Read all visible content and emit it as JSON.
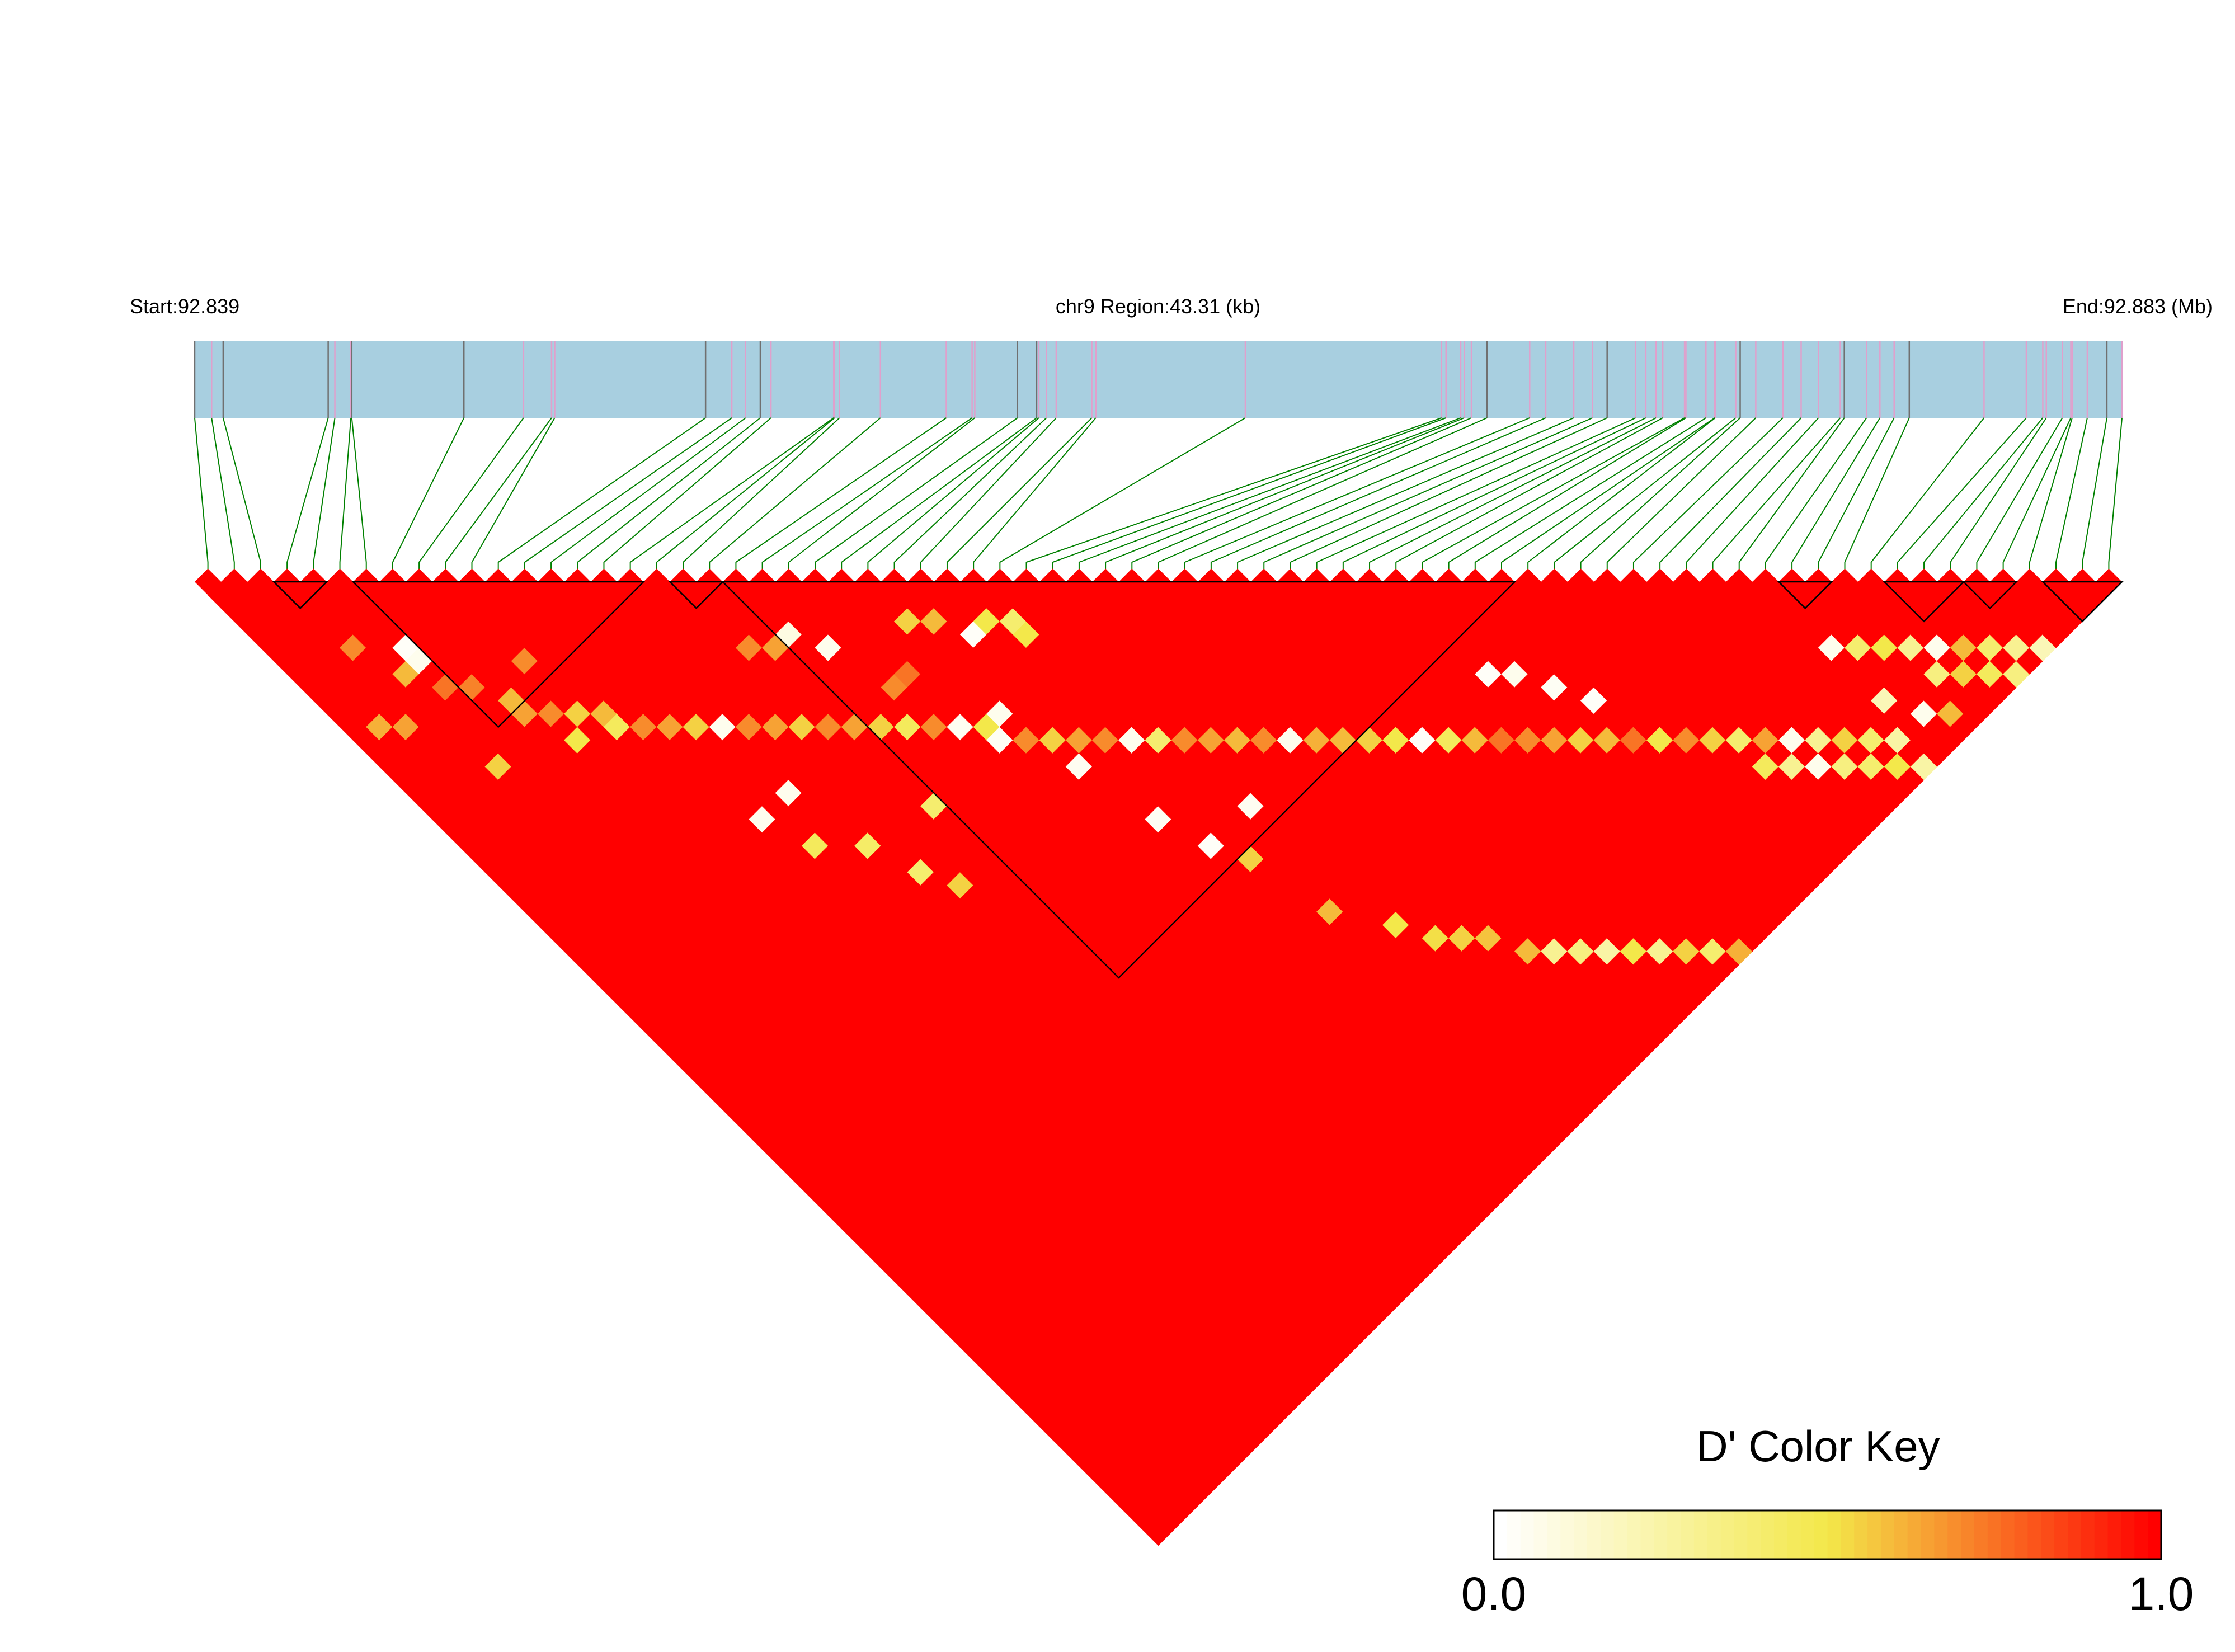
{
  "header": {
    "start_label": "Start:92.839",
    "region_label": "chr9 Region:43.31 (kb)",
    "end_label": "End:92.883 (Mb)"
  },
  "colors": {
    "chromosome_bar": "#a8cfe0",
    "snp_tick_default": "#e0a0cc",
    "snp_tick_dark": "#707070",
    "connector": "#008000",
    "block_outline": "#000000",
    "d_high": "#ff0000",
    "d_low": "#ffffff"
  },
  "legend": {
    "title": "D' Color Key",
    "min_label": "0.0",
    "max_label": "1.0",
    "steps": 50,
    "stops": [
      "#ffffff",
      "#f3e84a",
      "#ff0000"
    ]
  },
  "chart_data": {
    "type": "heatmap",
    "subtype": "LD triangle (pairwise D')",
    "chromosome": "chr9",
    "region_start_mb": 92.839,
    "region_end_mb": 92.883,
    "region_length_kb": 43.31,
    "n_snps": 73,
    "snp_positions_kb": [
      0.0,
      0.38,
      0.64,
      3.0,
      3.15,
      3.51,
      3.53,
      6.05,
      7.39,
      8.02,
      8.09,
      11.48,
      12.07,
      12.38,
      12.71,
      12.95,
      14.36,
      14.38,
      14.49,
      15.41,
      16.89,
      17.47,
      17.53,
      18.49,
      18.92,
      18.97,
      19.14,
      19.36,
      20.16,
      20.25,
      23.61,
      28.02,
      28.12,
      28.45,
      28.53,
      28.69,
      29.04,
      30.0,
      30.36,
      30.99,
      31.41,
      31.74,
      32.38,
      32.61,
      32.84,
      32.99,
      33.48,
      33.51,
      33.96,
      34.16,
      34.17,
      34.63,
      34.73,
      35.08,
      35.69,
      36.1,
      36.49,
      36.98,
      37.07,
      37.57,
      37.87,
      38.19,
      38.53,
      40.21,
      41.16,
      41.53,
      41.61,
      41.97,
      42.16,
      42.19,
      42.53,
      42.97,
      43.31
    ],
    "dark_snp_indices": [
      0,
      2,
      3,
      6,
      7,
      11,
      14,
      23,
      24,
      36,
      41,
      52,
      58,
      62,
      71
    ],
    "haplotype_blocks": [
      {
        "snps": [
          3,
          4
        ],
        "d_prime": 1.0
      },
      {
        "snps": [
          6,
          16
        ],
        "d_prime": 1.0
      },
      {
        "snps": [
          18,
          19
        ],
        "d_prime": 1.0
      },
      {
        "snps": [
          20,
          49
        ],
        "d_prime": 1.0
      },
      {
        "snps": [
          60,
          61
        ],
        "d_prime": 1.0
      },
      {
        "snps": [
          64,
          66
        ],
        "d_prime": 1.0
      },
      {
        "snps": [
          67,
          68
        ],
        "d_prime": 1.0
      },
      {
        "snps": [
          70,
          72
        ],
        "d_prime": 1.0
      }
    ],
    "pairwise_d_prime_exceptions": [
      [
        1,
        12,
        0.62
      ],
      [
        4,
        18,
        0.55
      ],
      [
        5,
        10,
        0.02
      ],
      [
        5,
        11,
        0.05
      ],
      [
        7,
        16,
        0.6
      ],
      [
        9,
        15,
        0.7
      ],
      [
        10,
        21,
        0.45
      ],
      [
        3,
        8,
        0.7
      ],
      [
        2,
        13,
        0.65
      ],
      [
        4,
        11,
        0.6
      ],
      [
        8,
        20,
        0.5
      ],
      [
        12,
        30,
        0.05
      ],
      [
        14,
        30,
        0.05
      ],
      [
        13,
        33,
        0.45
      ],
      [
        15,
        35,
        0.42
      ],
      [
        16,
        38,
        0.4
      ],
      [
        17,
        40,
        0.55
      ],
      [
        19,
        36,
        0.4
      ],
      [
        18,
        23,
        0.7
      ],
      [
        19,
        24,
        0.65
      ],
      [
        20,
        24,
        0.08
      ],
      [
        21,
        26,
        0.05
      ],
      [
        22,
        30,
        0.7
      ],
      [
        23,
        30,
        0.75
      ],
      [
        24,
        36,
        0.03
      ],
      [
        25,
        35,
        0.05
      ],
      [
        26,
        40,
        0.04
      ],
      [
        27,
        45,
        0.03
      ],
      [
        28,
        48,
        0.02
      ],
      [
        29,
        33,
        0.5
      ],
      [
        29,
        50,
        0.55
      ],
      [
        30,
        55,
        0.6
      ],
      [
        31,
        48,
        0.04
      ],
      [
        32,
        58,
        0.5
      ],
      [
        33,
        60,
        0.52
      ],
      [
        34,
        61,
        0.55
      ],
      [
        35,
        62,
        0.58
      ],
      [
        36,
        64,
        0.6
      ],
      [
        37,
        65,
        0.3
      ],
      [
        38,
        66,
        0.35
      ],
      [
        39,
        67,
        0.25
      ],
      [
        40,
        68,
        0.5
      ],
      [
        41,
        69,
        0.3
      ],
      [
        42,
        70,
        0.55
      ],
      [
        43,
        71,
        0.4
      ],
      [
        44,
        72,
        0.62
      ],
      [
        45,
        52,
        0.02
      ],
      [
        46,
        53,
        0.05
      ],
      [
        47,
        55,
        0.03
      ],
      [
        48,
        57,
        0.02
      ],
      [
        52,
        66,
        0.45
      ],
      [
        53,
        67,
        0.3
      ],
      [
        54,
        68,
        0.05
      ],
      [
        55,
        69,
        0.35
      ],
      [
        56,
        70,
        0.4
      ],
      [
        57,
        71,
        0.5
      ],
      [
        58,
        72,
        0.25
      ],
      [
        59,
        64,
        0.05
      ],
      [
        60,
        65,
        0.4
      ],
      [
        61,
        66,
        0.5
      ],
      [
        62,
        67,
        0.3
      ],
      [
        63,
        68,
        0.05
      ],
      [
        64,
        69,
        0.6
      ],
      [
        65,
        70,
        0.4
      ],
      [
        66,
        71,
        0.3
      ],
      [
        67,
        72,
        0.2
      ],
      [
        62,
        69,
        0.35
      ],
      [
        63,
        70,
        0.55
      ],
      [
        64,
        71,
        0.45
      ],
      [
        65,
        72,
        0.35
      ],
      [
        59,
        68,
        0.2
      ],
      [
        60,
        70,
        0.05
      ],
      [
        61,
        71,
        0.6
      ],
      [
        58,
        70,
        0.25
      ],
      [
        57,
        69,
        0.4
      ],
      [
        56,
        68,
        0.55
      ],
      [
        55,
        67,
        0.3
      ],
      [
        54,
        66,
        0.05
      ],
      [
        53,
        65,
        0.65
      ],
      [
        52,
        64,
        0.4
      ],
      [
        51,
        63,
        0.55
      ],
      [
        50,
        62,
        0.7
      ],
      [
        49,
        61,
        0.5
      ],
      [
        48,
        60,
        0.75
      ],
      [
        47,
        59,
        0.6
      ],
      [
        46,
        58,
        0.55
      ],
      [
        45,
        57,
        0.65
      ],
      [
        44,
        56,
        0.7
      ],
      [
        43,
        55,
        0.75
      ],
      [
        42,
        54,
        0.6
      ],
      [
        41,
        53,
        0.45
      ],
      [
        40,
        52,
        0.02
      ],
      [
        39,
        51,
        0.5
      ],
      [
        38,
        50,
        0.55
      ],
      [
        37,
        49,
        0.6
      ],
      [
        36,
        48,
        0.62
      ],
      [
        35,
        47,
        0.05
      ],
      [
        34,
        46,
        0.7
      ],
      [
        33,
        45,
        0.6
      ],
      [
        32,
        44,
        0.65
      ],
      [
        31,
        43,
        0.7
      ],
      [
        30,
        42,
        0.4
      ],
      [
        29,
        41,
        0.05
      ],
      [
        28,
        40,
        0.7
      ],
      [
        27,
        39,
        0.65
      ],
      [
        26,
        38,
        0.55
      ],
      [
        25,
        37,
        0.7
      ],
      [
        24,
        35,
        0.5
      ],
      [
        23,
        34,
        0.04
      ],
      [
        22,
        33,
        0.7
      ],
      [
        21,
        32,
        0.45
      ],
      [
        20,
        31,
        0.55
      ],
      [
        19,
        30,
        0.65
      ],
      [
        18,
        29,
        0.7
      ],
      [
        17,
        28,
        0.55
      ],
      [
        16,
        27,
        0.65
      ],
      [
        15,
        26,
        0.7
      ],
      [
        14,
        25,
        0.05
      ],
      [
        13,
        24,
        0.55
      ],
      [
        12,
        23,
        0.65
      ],
      [
        11,
        22,
        0.7
      ],
      [
        10,
        20,
        0.6
      ],
      [
        9,
        19,
        0.55
      ],
      [
        8,
        18,
        0.7
      ],
      [
        7,
        17,
        0.65
      ],
      [
        6,
        14,
        0.72
      ],
      [
        5,
        13,
        0.75
      ],
      [
        27,
        31,
        0.02
      ],
      [
        26,
        29,
        0.6
      ],
      [
        25,
        28,
        0.55
      ],
      [
        28,
        31,
        0.5
      ],
      [
        29,
        32,
        0.4
      ]
    ],
    "default_d_prime": 1.0,
    "color_scale": {
      "min": 0.0,
      "max": 1.0
    }
  }
}
